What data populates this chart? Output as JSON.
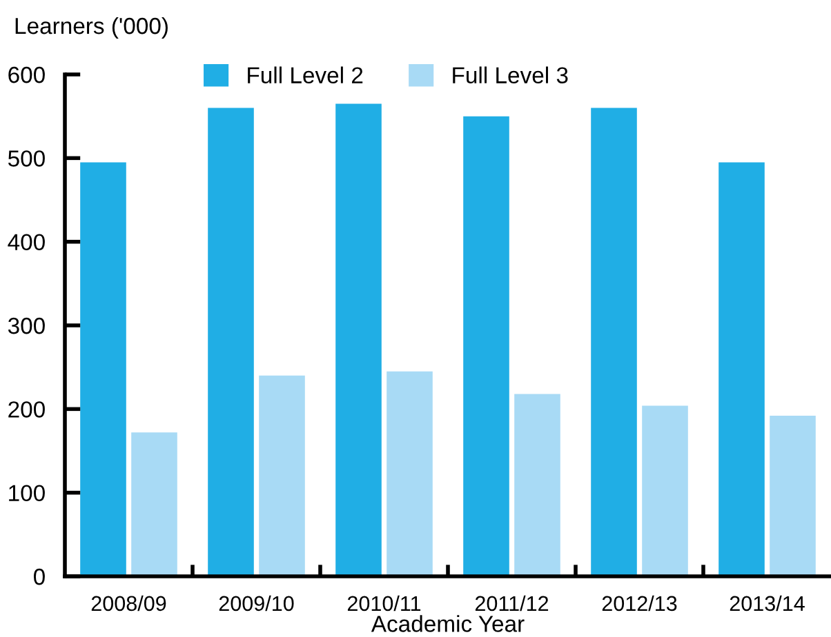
{
  "chart_data": {
    "type": "bar",
    "ylabel": "Learners ('000)",
    "xlabel": "Academic Year",
    "categories": [
      "2008/09",
      "2009/10",
      "2010/11",
      "2011/12",
      "2012/13",
      "2013/14"
    ],
    "series": [
      {
        "name": "Full Level 2",
        "color": "#20aee5",
        "values": [
          495,
          560,
          565,
          550,
          560,
          495
        ]
      },
      {
        "name": "Full Level 3",
        "color": "#a8daf5",
        "values": [
          172,
          240,
          245,
          218,
          204,
          192
        ]
      }
    ],
    "ylim": [
      0,
      600
    ],
    "yticks": [
      0,
      100,
      200,
      300,
      400,
      500,
      600
    ],
    "grid": false,
    "legend": "top"
  }
}
